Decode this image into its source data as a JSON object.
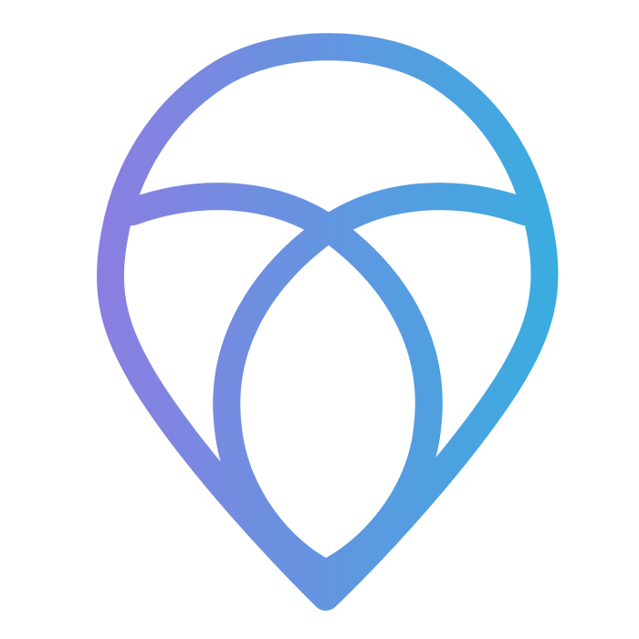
{
  "logo": {
    "name": "map-pin-logo",
    "gradient": {
      "start_color": "#8b7ee0",
      "end_color": "#3aace0"
    },
    "background_color": "#ffffff"
  }
}
